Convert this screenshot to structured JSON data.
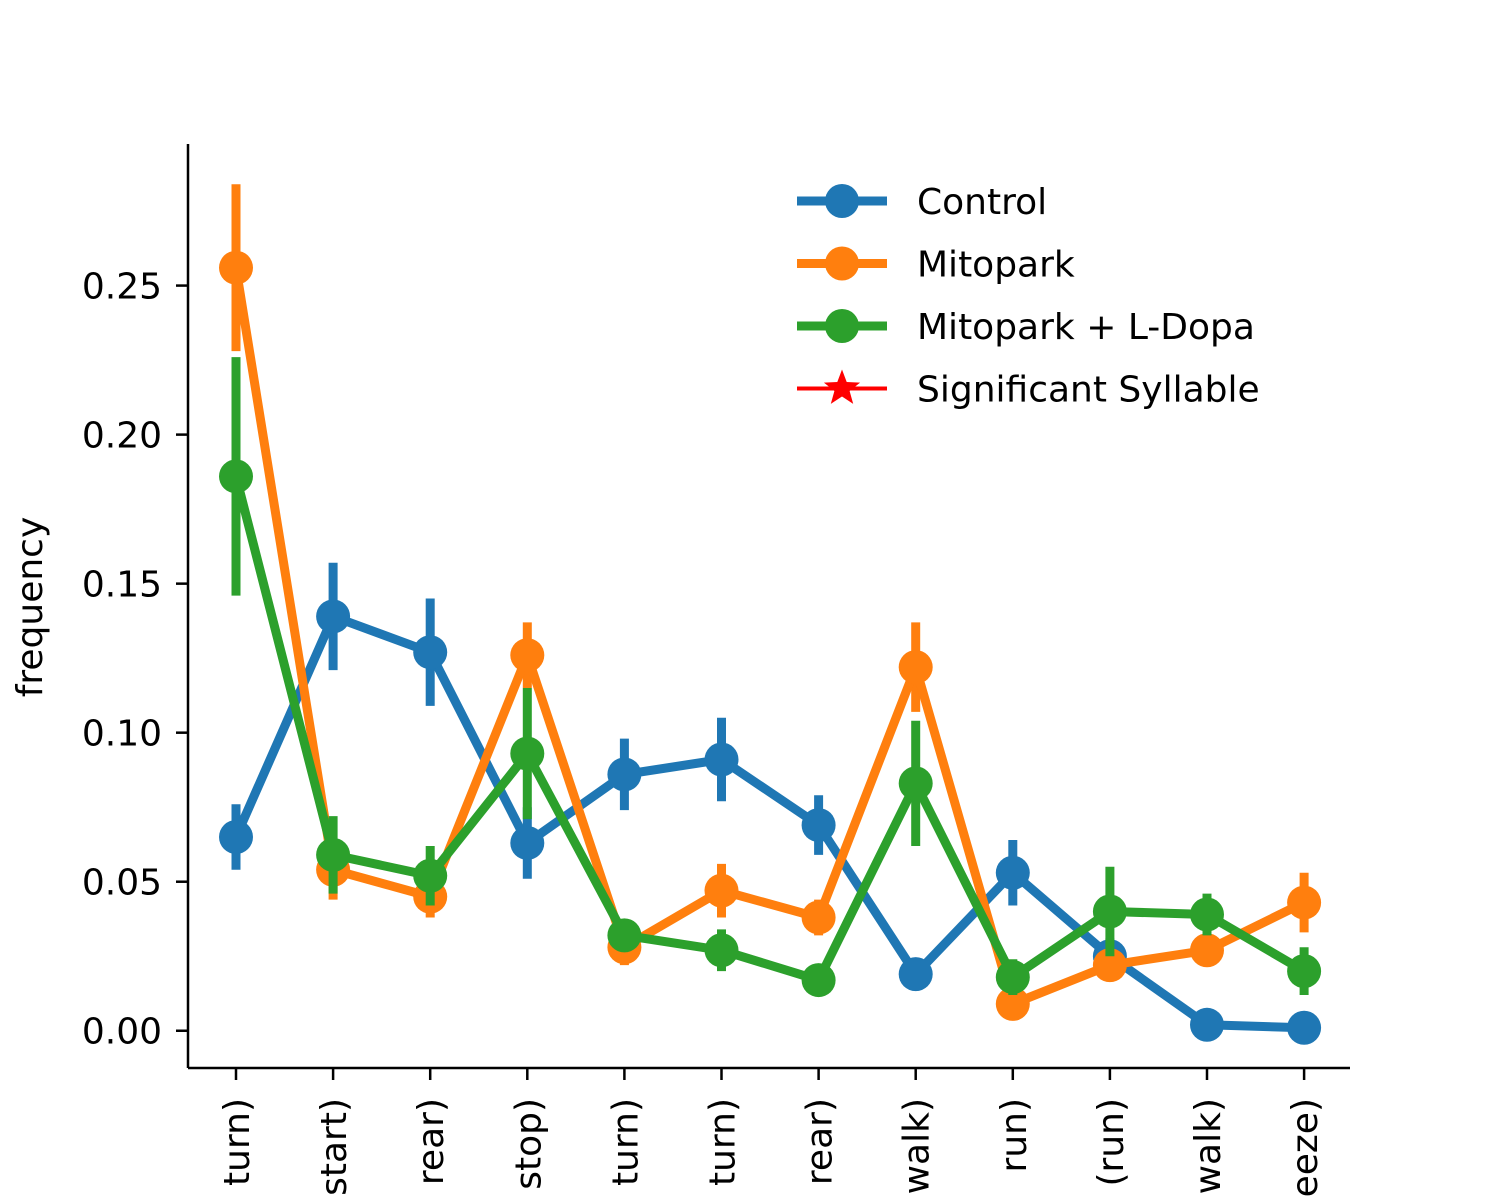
{
  "chart_data": {
    "type": "line",
    "title": "",
    "xlabel": "",
    "ylabel": "frequency",
    "ylim": [
      -0.0125,
      0.2975
    ],
    "yticks": [
      "0.00",
      "0.05",
      "0.10",
      "0.15",
      "0.20",
      "0.25"
    ],
    "ytick_values": [
      0.0,
      0.05,
      0.1,
      0.15,
      0.2,
      0.25
    ],
    "categories": [
      "turn)",
      "start)",
      "rear)",
      "stop)",
      "turn)",
      "turn)",
      "rear)",
      "walk)",
      "run)",
      "(run)",
      "walk)",
      "eeze)"
    ],
    "grid": false,
    "legend_position": "upper-right",
    "series": [
      {
        "name": "Control",
        "color": "#1f77b4",
        "values": [
          0.065,
          0.139,
          0.127,
          0.063,
          0.086,
          0.091,
          0.069,
          0.019,
          0.053,
          0.025,
          0.002,
          0.001
        ],
        "err": [
          0.011,
          0.018,
          0.018,
          0.012,
          0.012,
          0.014,
          0.01,
          0.005,
          0.011,
          0.006,
          0.002,
          0.002
        ]
      },
      {
        "name": "Mitopark",
        "color": "#ff7f0e",
        "values": [
          0.256,
          0.054,
          0.045,
          0.126,
          0.028,
          0.047,
          0.038,
          0.122,
          0.009,
          0.022,
          0.027,
          0.043
        ],
        "err": [
          0.028,
          0.01,
          0.007,
          0.011,
          0.006,
          0.009,
          0.006,
          0.015,
          0.004,
          0.005,
          0.005,
          0.01
        ]
      },
      {
        "name": "Mitopark + L-Dopa",
        "color": "#2ca02c",
        "values": [
          0.186,
          0.059,
          0.052,
          0.093,
          0.032,
          0.027,
          0.017,
          0.083,
          0.018,
          0.04,
          0.039,
          0.02
        ],
        "err": [
          0.04,
          0.013,
          0.01,
          0.022,
          0.005,
          0.007,
          0.004,
          0.021,
          0.006,
          0.015,
          0.007,
          0.008
        ]
      }
    ],
    "legend": [
      {
        "label": "Control",
        "color": "#1f77b4",
        "marker": "circle"
      },
      {
        "label": "Mitopark",
        "color": "#ff7f0e",
        "marker": "circle"
      },
      {
        "label": "Mitopark + L-Dopa",
        "color": "#2ca02c",
        "marker": "circle"
      },
      {
        "label": "Significant Syllable",
        "color": "#ff0000",
        "marker": "star"
      }
    ]
  }
}
